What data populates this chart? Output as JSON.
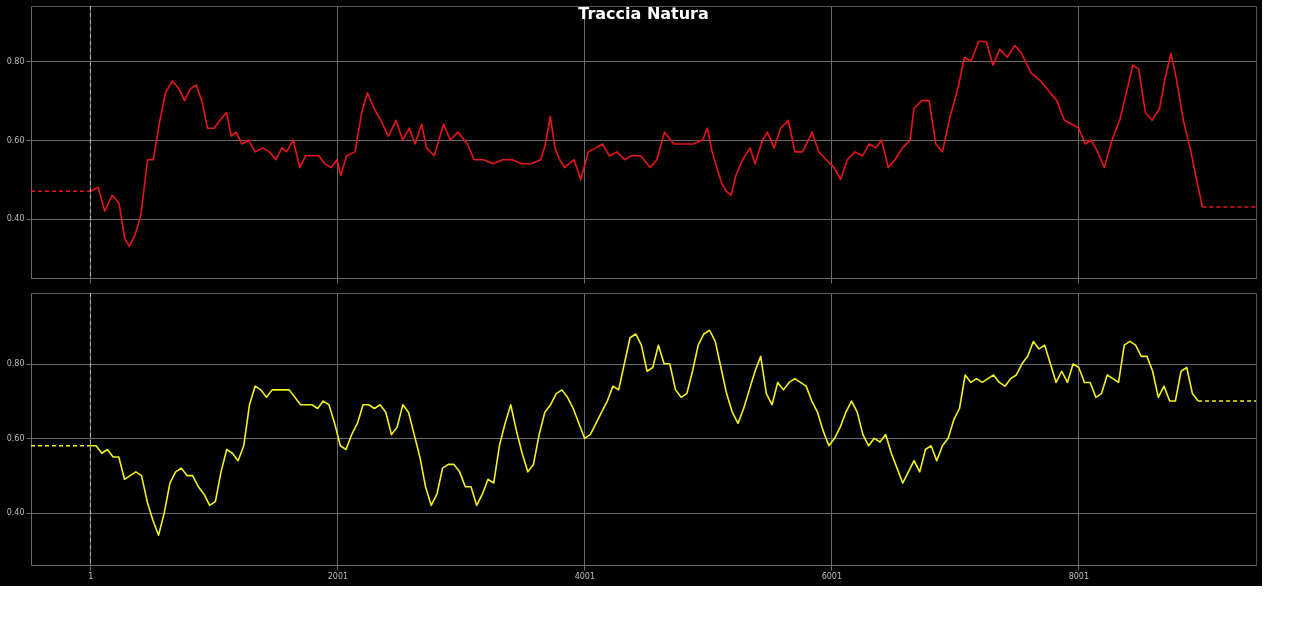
{
  "chart_data": [
    {
      "type": "line",
      "title": "Traccia Natura",
      "xlim": [
        -480,
        9440
      ],
      "ylim": [
        0.25,
        0.94
      ],
      "xticks": [
        1,
        2001,
        4001,
        6001,
        8001
      ],
      "yticks": [
        {
          "value": 0.4,
          "label": "0.40"
        },
        {
          "value": 0.6,
          "label": "0.60"
        },
        {
          "value": 0.8,
          "label": "0.80"
        }
      ],
      "grid": true,
      "tick_labels": "y",
      "line_style": "solid",
      "ref_lines": [
        {
          "axis": "x",
          "value": 1,
          "color": "#bbbbbb",
          "line_style": "dashed"
        }
      ],
      "series": [
        {
          "color": "#e8141b",
          "x": [
            1,
            63,
            117,
            178,
            232,
            279,
            317,
            363,
            410,
            464,
            510,
            564,
            610,
            664,
            718,
            764,
            811,
            857,
            903,
            949,
            1003,
            1050,
            1103,
            1142,
            1181,
            1227,
            1281,
            1335,
            1397,
            1450,
            1504,
            1551,
            1589,
            1643,
            1697,
            1743,
            1797,
            1851,
            1898,
            1952,
            1998,
            2029,
            2075,
            2144,
            2198,
            2245,
            2298,
            2353,
            2414,
            2476,
            2530,
            2584,
            2630,
            2684,
            2723,
            2785,
            2861,
            2915,
            2977,
            3054,
            3108,
            3185,
            3262,
            3339,
            3416,
            3494,
            3571,
            3648,
            3686,
            3725,
            3763,
            3802,
            3841,
            3918,
            3972,
            4033,
            4095,
            4149,
            4203,
            4265,
            4326,
            4380,
            4457,
            4534,
            4588,
            4650,
            4727,
            4804,
            4881,
            4959,
            4997,
            5036,
            5074,
            5113,
            5151,
            5190,
            5228,
            5282,
            5344,
            5383,
            5444,
            5483,
            5537,
            5591,
            5653,
            5706,
            5768,
            5845,
            5899,
            5961,
            6023,
            6076,
            6130,
            6192,
            6254,
            6308,
            6362,
            6408,
            6462,
            6516,
            6578,
            6639,
            6670,
            6732,
            6793,
            6847,
            6901,
            6963,
            7025,
            7079,
            7133,
            7194,
            7256,
            7310,
            7364,
            7426,
            7487,
            7541,
            7618,
            7696,
            7773,
            7827,
            7888,
            7950,
            8004,
            8058,
            8104,
            8158,
            8212,
            8274,
            8336,
            8390,
            8443,
            8490,
            8544,
            8598,
            8659,
            8706,
            8752,
            8798,
            8852,
            8906,
            8952,
            9006
          ],
          "values": [
            0.47,
            0.48,
            0.42,
            0.46,
            0.44,
            0.35,
            0.33,
            0.36,
            0.41,
            0.55,
            0.55,
            0.65,
            0.72,
            0.75,
            0.73,
            0.7,
            0.73,
            0.74,
            0.7,
            0.63,
            0.63,
            0.65,
            0.67,
            0.61,
            0.62,
            0.59,
            0.6,
            0.57,
            0.58,
            0.57,
            0.55,
            0.58,
            0.57,
            0.6,
            0.53,
            0.56,
            0.56,
            0.56,
            0.54,
            0.53,
            0.55,
            0.51,
            0.56,
            0.57,
            0.67,
            0.72,
            0.68,
            0.65,
            0.61,
            0.65,
            0.6,
            0.63,
            0.59,
            0.64,
            0.58,
            0.56,
            0.64,
            0.6,
            0.62,
            0.59,
            0.55,
            0.55,
            0.54,
            0.55,
            0.55,
            0.54,
            0.54,
            0.55,
            0.59,
            0.66,
            0.58,
            0.55,
            0.53,
            0.55,
            0.5,
            0.57,
            0.58,
            0.59,
            0.56,
            0.57,
            0.55,
            0.56,
            0.56,
            0.53,
            0.55,
            0.62,
            0.59,
            0.59,
            0.59,
            0.6,
            0.63,
            0.57,
            0.53,
            0.49,
            0.47,
            0.46,
            0.51,
            0.55,
            0.58,
            0.54,
            0.6,
            0.62,
            0.58,
            0.63,
            0.65,
            0.57,
            0.57,
            0.62,
            0.57,
            0.55,
            0.53,
            0.5,
            0.55,
            0.57,
            0.56,
            0.59,
            0.58,
            0.6,
            0.53,
            0.55,
            0.58,
            0.6,
            0.68,
            0.7,
            0.7,
            0.59,
            0.57,
            0.66,
            0.73,
            0.81,
            0.8,
            0.85,
            0.85,
            0.79,
            0.83,
            0.81,
            0.84,
            0.82,
            0.77,
            0.75,
            0.72,
            0.7,
            0.65,
            0.64,
            0.63,
            0.59,
            0.6,
            0.57,
            0.53,
            0.6,
            0.65,
            0.72,
            0.79,
            0.78,
            0.67,
            0.65,
            0.68,
            0.76,
            0.82,
            0.75,
            0.65,
            0.58,
            0.51,
            0.43
          ]
        },
        {
          "color": "#e8141b",
          "line_style": "dashed",
          "x": [
            -480,
            1
          ],
          "values": [
            0.47,
            0.47
          ]
        },
        {
          "color": "#e8141b",
          "line_style": "dashed",
          "x": [
            9006,
            9440
          ],
          "values": [
            0.43,
            0.43
          ]
        }
      ]
    },
    {
      "type": "line",
      "xlim": [
        -480,
        9440
      ],
      "ylim": [
        0.26,
        0.99
      ],
      "xticks": [
        1,
        2001,
        4001,
        6001,
        8001
      ],
      "yticks": [
        {
          "value": 0.4,
          "label": "0.40"
        },
        {
          "value": 0.6,
          "label": "0.60"
        },
        {
          "value": 0.8,
          "label": "0.80"
        }
      ],
      "grid": true,
      "line_style": "solid",
      "ref_lines": [
        {
          "axis": "x",
          "value": 1,
          "color": "#bbbbbb",
          "line_style": "dashed"
        }
      ],
      "series": [
        {
          "color": "#f2f01e",
          "x": [
            1,
            47,
            93,
            139,
            185,
            231,
            277,
            323,
            369,
            415,
            461,
            507,
            553,
            599,
            645,
            691,
            737,
            783,
            829,
            875,
            921,
            967,
            1013,
            1059,
            1105,
            1151,
            1197,
            1243,
            1289,
            1335,
            1381,
            1427,
            1473,
            1519,
            1565,
            1611,
            1657,
            1703,
            1749,
            1795,
            1841,
            1887,
            1933,
            1979,
            2025,
            2071,
            2117,
            2163,
            2209,
            2255,
            2301,
            2347,
            2393,
            2439,
            2485,
            2531,
            2577,
            2623,
            2669,
            2715,
            2761,
            2807,
            2853,
            2899,
            2945,
            2991,
            3037,
            3083,
            3129,
            3175,
            3221,
            3267,
            3313,
            3359,
            3405,
            3451,
            3497,
            3543,
            3589,
            3635,
            3681,
            3727,
            3773,
            3819,
            3865,
            3911,
            3957,
            4003,
            4049,
            4095,
            4141,
            4187,
            4233,
            4279,
            4325,
            4371,
            4417,
            4463,
            4509,
            4555,
            4601,
            4647,
            4693,
            4739,
            4785,
            4831,
            4877,
            4923,
            4969,
            5015,
            5061,
            5107,
            5153,
            5199,
            5245,
            5291,
            5337,
            5383,
            5429,
            5475,
            5521,
            5567,
            5613,
            5659,
            5705,
            5751,
            5797,
            5843,
            5889,
            5935,
            5981,
            6027,
            6073,
            6119,
            6165,
            6211,
            6257,
            6303,
            6349,
            6395,
            6441,
            6487,
            6533,
            6579,
            6625,
            6671,
            6717,
            6763,
            6809,
            6855,
            6901,
            6947,
            6993,
            7039,
            7085,
            7131,
            7177,
            7223,
            7269,
            7315,
            7361,
            7407,
            7453,
            7499,
            7545,
            7591,
            7637,
            7683,
            7729,
            7775,
            7821,
            7867,
            7913,
            7959,
            8005,
            8051,
            8097,
            8143,
            8189,
            8235,
            8281,
            8327,
            8373,
            8419,
            8465,
            8511,
            8557,
            8603,
            8649,
            8695,
            8741,
            8787,
            8833,
            8879,
            8925,
            8971
          ],
          "values": [
            0.58,
            0.58,
            0.56,
            0.57,
            0.55,
            0.55,
            0.49,
            0.5,
            0.51,
            0.5,
            0.43,
            0.38,
            0.34,
            0.4,
            0.48,
            0.51,
            0.52,
            0.5,
            0.5,
            0.47,
            0.45,
            0.42,
            0.43,
            0.51,
            0.57,
            0.56,
            0.54,
            0.58,
            0.69,
            0.74,
            0.73,
            0.71,
            0.73,
            0.73,
            0.73,
            0.73,
            0.71,
            0.69,
            0.69,
            0.69,
            0.68,
            0.7,
            0.69,
            0.64,
            0.58,
            0.57,
            0.61,
            0.64,
            0.69,
            0.69,
            0.68,
            0.69,
            0.67,
            0.61,
            0.63,
            0.69,
            0.67,
            0.61,
            0.55,
            0.47,
            0.42,
            0.45,
            0.52,
            0.53,
            0.53,
            0.51,
            0.47,
            0.47,
            0.42,
            0.45,
            0.49,
            0.48,
            0.58,
            0.64,
            0.69,
            0.62,
            0.56,
            0.51,
            0.53,
            0.61,
            0.67,
            0.69,
            0.72,
            0.73,
            0.71,
            0.68,
            0.64,
            0.6,
            0.61,
            0.64,
            0.67,
            0.7,
            0.74,
            0.73,
            0.8,
            0.87,
            0.88,
            0.85,
            0.78,
            0.79,
            0.85,
            0.8,
            0.8,
            0.73,
            0.71,
            0.72,
            0.78,
            0.85,
            0.88,
            0.89,
            0.86,
            0.79,
            0.72,
            0.67,
            0.64,
            0.68,
            0.73,
            0.78,
            0.82,
            0.72,
            0.69,
            0.75,
            0.73,
            0.75,
            0.76,
            0.75,
            0.74,
            0.7,
            0.67,
            0.62,
            0.58,
            0.6,
            0.63,
            0.67,
            0.7,
            0.67,
            0.61,
            0.58,
            0.6,
            0.59,
            0.61,
            0.56,
            0.52,
            0.48,
            0.51,
            0.54,
            0.51,
            0.57,
            0.58,
            0.54,
            0.58,
            0.6,
            0.65,
            0.68,
            0.77,
            0.75,
            0.76,
            0.75,
            0.76,
            0.77,
            0.75,
            0.74,
            0.76,
            0.77,
            0.8,
            0.82,
            0.86,
            0.84,
            0.85,
            0.8,
            0.75,
            0.78,
            0.75,
            0.8,
            0.79,
            0.75,
            0.75,
            0.71,
            0.72,
            0.77,
            0.76,
            0.75,
            0.85,
            0.86,
            0.85,
            0.82,
            0.82,
            0.78,
            0.71,
            0.74,
            0.7,
            0.7,
            0.78,
            0.79,
            0.72,
            0.7
          ]
        },
        {
          "color": "#f2f01e",
          "line_style": "dashed",
          "x": [
            -480,
            1
          ],
          "values": [
            0.58,
            0.58
          ]
        },
        {
          "color": "#f2f01e",
          "line_style": "dashed",
          "x": [
            8971,
            9440
          ],
          "values": [
            0.7,
            0.7
          ]
        }
      ]
    }
  ]
}
